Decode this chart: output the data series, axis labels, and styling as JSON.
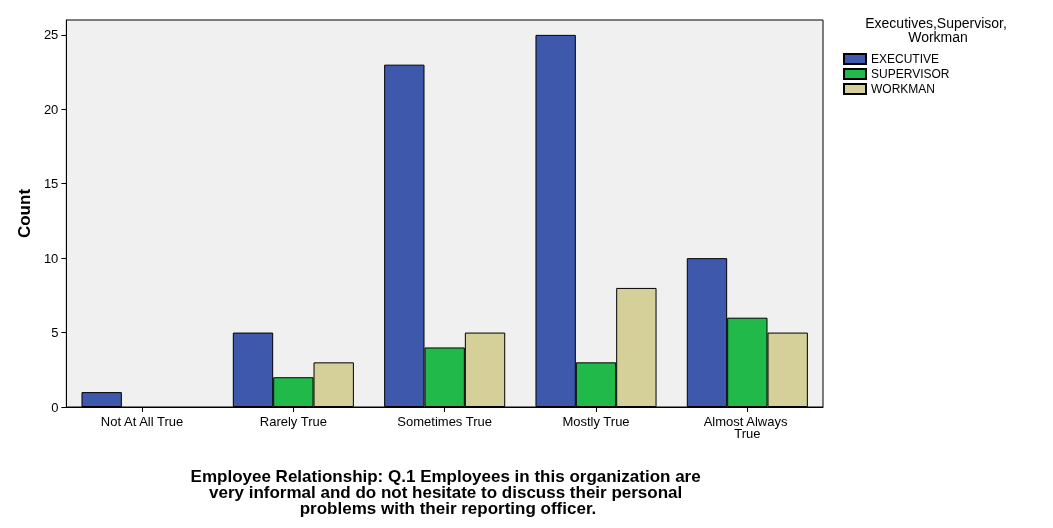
{
  "chart_data": {
    "type": "bar",
    "xlabel": "Employee Relationship: Q.1 Employees in this organization are very informal and do not hesitate to discuss their personal problems with their reporting officer.",
    "ylabel": "Count",
    "legend_title": "Executives,Supervisor, Workman",
    "categories": [
      "Not At All True",
      "Rarely True",
      "Sometimes True",
      "Mostly True",
      "Almost Always True"
    ],
    "series": [
      {
        "name": "EXECUTIVE",
        "color": "#3e58ac",
        "values": [
          1,
          5,
          23,
          25,
          10
        ]
      },
      {
        "name": "SUPERVISOR",
        "color": "#21b94a",
        "values": [
          0,
          2,
          4,
          3,
          6
        ]
      },
      {
        "name": "WORKMAN",
        "color": "#d5cf9a",
        "values": [
          0,
          3,
          5,
          8,
          5
        ]
      }
    ],
    "ylim": [
      0,
      26
    ],
    "yticks": [
      0,
      5,
      10,
      15,
      20,
      25
    ],
    "grid": false,
    "legend": "top right"
  }
}
